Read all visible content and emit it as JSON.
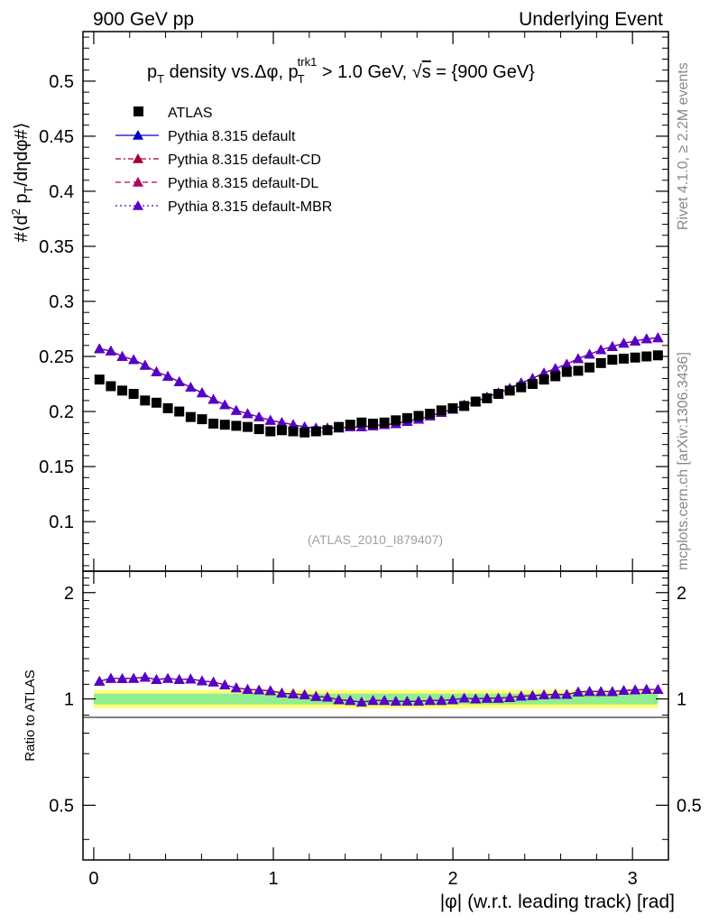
{
  "header": {
    "left": "900 GeV pp",
    "right": "Underlying Event"
  },
  "side_text": {
    "rivet": "Rivet 4.1.0, ≥ 2.2M events",
    "mcplots": "mcplots.cern.ch [arXiv:1306.3436]"
  },
  "chart_data": {
    "type": "scatter",
    "title_parts": {
      "p": "p",
      "T": "T",
      "mid": " density vs.Δφ, p",
      "trk1": "trk1",
      "gev": " > 1.0 GeV, ",
      "sqrt": "√",
      "s": "s",
      "tail": " = {900 GeV}"
    },
    "ylabel_parts": {
      "a": "#⟨d",
      "b": "2",
      "c": " p",
      "d": "T",
      "e": "/dηdφ#⟩"
    },
    "xlabel": "|φ| (w.r.t. leading track) [rad]",
    "ratio_ylabel": "Ratio to ATLAS",
    "watermark": "(ATLAS_2010_I879407)",
    "xlim": [
      -0.06,
      3.2
    ],
    "ylim": [
      0.055,
      0.545
    ],
    "ratio_ylim": [
      0.35,
      2.3
    ],
    "x_ticks": [
      "0",
      "1",
      "2",
      "3"
    ],
    "y_ticks": [
      "0.1",
      "0.15",
      "0.2",
      "0.25",
      "0.3",
      "0.35",
      "0.4",
      "0.45",
      "0.5"
    ],
    "ratio_ticks": [
      "0.5",
      "1",
      "2"
    ],
    "x": [
      0.0317,
      0.0952,
      0.1587,
      0.2221,
      0.2856,
      0.3491,
      0.4126,
      0.476,
      0.5395,
      0.603,
      0.6664,
      0.7299,
      0.7934,
      0.8568,
      0.9203,
      0.9838,
      1.0473,
      1.1107,
      1.1742,
      1.2377,
      1.3011,
      1.3646,
      1.4281,
      1.4915,
      1.555,
      1.6185,
      1.682,
      1.7454,
      1.8089,
      1.8724,
      1.9358,
      1.9993,
      2.0628,
      2.1262,
      2.1897,
      2.2532,
      2.3166,
      2.3801,
      2.4436,
      2.5071,
      2.5705,
      2.634,
      2.6975,
      2.7609,
      2.8244,
      2.8879,
      2.9513,
      3.0148,
      3.0783,
      3.1417
    ],
    "series": [
      {
        "name": "ATLAS",
        "color": "#000000",
        "marker": "square",
        "line": "none",
        "values": [
          0.229,
          0.223,
          0.219,
          0.216,
          0.21,
          0.208,
          0.203,
          0.2,
          0.195,
          0.193,
          0.189,
          0.188,
          0.187,
          0.186,
          0.184,
          0.182,
          0.183,
          0.182,
          0.181,
          0.182,
          0.183,
          0.186,
          0.188,
          0.19,
          0.189,
          0.19,
          0.192,
          0.194,
          0.196,
          0.198,
          0.201,
          0.203,
          0.205,
          0.209,
          0.212,
          0.216,
          0.219,
          0.222,
          0.225,
          0.229,
          0.232,
          0.236,
          0.237,
          0.24,
          0.244,
          0.247,
          0.248,
          0.249,
          0.25,
          0.251
        ]
      },
      {
        "name": "Pythia 8.315 default",
        "color": "#0000cc",
        "marker": "triangle",
        "line": "solid",
        "values": [
          0.257,
          0.255,
          0.25,
          0.247,
          0.242,
          0.236,
          0.232,
          0.227,
          0.222,
          0.217,
          0.211,
          0.206,
          0.201,
          0.198,
          0.195,
          0.192,
          0.19,
          0.188,
          0.186,
          0.185,
          0.185,
          0.185,
          0.186,
          0.186,
          0.187,
          0.188,
          0.189,
          0.191,
          0.193,
          0.196,
          0.199,
          0.202,
          0.206,
          0.209,
          0.213,
          0.217,
          0.221,
          0.226,
          0.23,
          0.235,
          0.239,
          0.243,
          0.248,
          0.252,
          0.256,
          0.259,
          0.262,
          0.264,
          0.266,
          0.267
        ]
      },
      {
        "name": "Pythia 8.315 default-CD",
        "color": "#a0003c",
        "marker": "triangle",
        "line": "dashdot",
        "values": [
          0.257,
          0.255,
          0.25,
          0.247,
          0.242,
          0.236,
          0.232,
          0.227,
          0.222,
          0.217,
          0.211,
          0.206,
          0.201,
          0.198,
          0.195,
          0.192,
          0.19,
          0.188,
          0.186,
          0.185,
          0.185,
          0.185,
          0.186,
          0.186,
          0.187,
          0.188,
          0.189,
          0.191,
          0.193,
          0.196,
          0.199,
          0.202,
          0.206,
          0.209,
          0.213,
          0.217,
          0.221,
          0.226,
          0.23,
          0.235,
          0.239,
          0.243,
          0.248,
          0.252,
          0.256,
          0.259,
          0.262,
          0.264,
          0.266,
          0.267
        ]
      },
      {
        "name": "Pythia 8.315 default-DL",
        "color": "#b00060",
        "marker": "triangle",
        "line": "dashed",
        "values": [
          0.257,
          0.255,
          0.25,
          0.247,
          0.242,
          0.236,
          0.232,
          0.227,
          0.222,
          0.217,
          0.211,
          0.206,
          0.201,
          0.198,
          0.195,
          0.192,
          0.19,
          0.188,
          0.186,
          0.185,
          0.185,
          0.185,
          0.186,
          0.186,
          0.187,
          0.188,
          0.189,
          0.191,
          0.193,
          0.196,
          0.199,
          0.202,
          0.206,
          0.209,
          0.213,
          0.217,
          0.221,
          0.226,
          0.23,
          0.235,
          0.239,
          0.243,
          0.248,
          0.252,
          0.256,
          0.259,
          0.262,
          0.264,
          0.266,
          0.267
        ]
      },
      {
        "name": "Pythia 8.315 default-MBR",
        "color": "#5500cc",
        "marker": "triangle",
        "line": "dotted",
        "values": [
          0.257,
          0.255,
          0.25,
          0.247,
          0.242,
          0.236,
          0.232,
          0.227,
          0.222,
          0.217,
          0.211,
          0.206,
          0.201,
          0.198,
          0.195,
          0.192,
          0.19,
          0.188,
          0.186,
          0.185,
          0.185,
          0.185,
          0.186,
          0.186,
          0.187,
          0.188,
          0.189,
          0.191,
          0.193,
          0.196,
          0.199,
          0.202,
          0.206,
          0.209,
          0.213,
          0.217,
          0.221,
          0.226,
          0.23,
          0.235,
          0.239,
          0.243,
          0.248,
          0.252,
          0.256,
          0.259,
          0.262,
          0.264,
          0.266,
          0.267
        ]
      }
    ],
    "bands": {
      "inner": "#90ee90",
      "outer": "#ffff7a",
      "inner_frac": 0.035,
      "outer_frac": 0.06
    }
  }
}
